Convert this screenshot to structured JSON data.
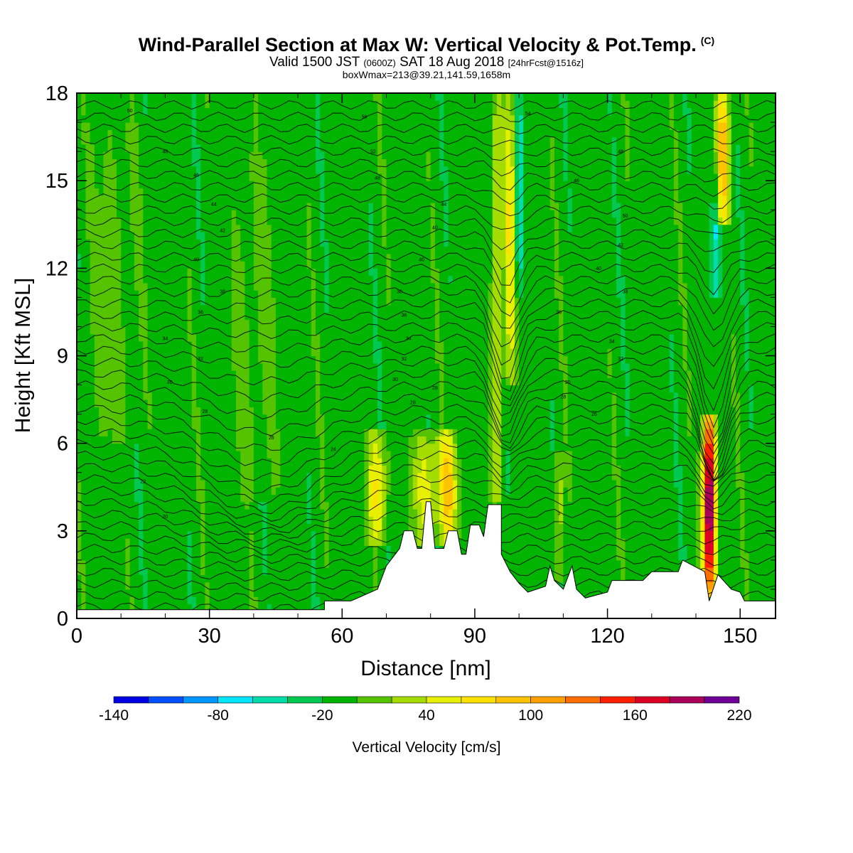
{
  "header": {
    "title": "Wind-Parallel Section at Max W: Vertical Velocity & Pot.Temp.",
    "copyright": "(C)",
    "valid_prefix": "Valid 1500 JST",
    "valid_utc": "(0600Z)",
    "valid_date": "SAT 18 Aug 2018",
    "forecast_note": "[24hrFcst@1516z]",
    "boxwmax": "boxWmax=213@39.21,141.59,1658m"
  },
  "chart_data": {
    "type": "heatmap",
    "xlabel": "Distance [nm]",
    "ylabel": "Height [Kft MSL]",
    "xlim": [
      0,
      158
    ],
    "ylim": [
      0,
      18
    ],
    "x_ticks": [
      0,
      30,
      60,
      90,
      120,
      150
    ],
    "y_ticks": [
      0,
      3,
      6,
      9,
      12,
      15,
      18
    ],
    "background_value": -10,
    "features": [
      {
        "kind": "updraft",
        "x": 68,
        "y_bottom": 2.5,
        "y_top": 6.5,
        "w": 2.2,
        "peak": 60
      },
      {
        "kind": "updraft",
        "x": 79,
        "y_bottom": 2.6,
        "y_top": 6.5,
        "w": 3.0,
        "peak": 50
      },
      {
        "kind": "updraft",
        "x": 84,
        "y_bottom": 2.6,
        "y_top": 6.4,
        "w": 2.0,
        "peak": 80
      },
      {
        "kind": "updraft",
        "x": 95,
        "y_bottom": 4.0,
        "y_top": 18,
        "w": 1.2,
        "peak": 50
      },
      {
        "kind": "updraft",
        "x": 98,
        "y_bottom": 8.0,
        "y_top": 18,
        "w": 1.3,
        "peak": 60
      },
      {
        "kind": "downdraft",
        "x": 100,
        "y_bottom": 11,
        "y_top": 18,
        "w": 1.0,
        "peak": -60
      },
      {
        "kind": "updraft",
        "x": 109,
        "y_bottom": 1.2,
        "y_top": 5.8,
        "w": 1.0,
        "peak": 40
      },
      {
        "kind": "updraft",
        "x": 143,
        "y_bottom": 0.7,
        "y_top": 7.0,
        "w": 1.4,
        "peak": 213
      },
      {
        "kind": "updraft",
        "x": 146,
        "y_bottom": 13.5,
        "y_top": 18,
        "w": 1.6,
        "peak": 100
      },
      {
        "kind": "downdraft",
        "x": 144.5,
        "y_bottom": 11,
        "y_top": 16,
        "w": 1.0,
        "peak": -60
      },
      {
        "kind": "updraft",
        "x": 8,
        "y_bottom": 6,
        "y_top": 17,
        "w": 5,
        "peak": 8
      },
      {
        "kind": "updraft",
        "x": 40,
        "y_bottom": 4,
        "y_top": 16,
        "w": 6,
        "peak": 6
      }
    ],
    "terrain_kft": [
      [
        0,
        0.3
      ],
      [
        56,
        0.3
      ],
      [
        56,
        0.6
      ],
      [
        62,
        0.6
      ],
      [
        68,
        1.0
      ],
      [
        70,
        1.8
      ],
      [
        73,
        2.4
      ],
      [
        74,
        3.0
      ],
      [
        76,
        3.0
      ],
      [
        77,
        2.4
      ],
      [
        78,
        2.4
      ],
      [
        79,
        4.0
      ],
      [
        80,
        4.0
      ],
      [
        81,
        2.4
      ],
      [
        83,
        2.4
      ],
      [
        84,
        3.0
      ],
      [
        86,
        3.0
      ],
      [
        87,
        2.2
      ],
      [
        88,
        2.2
      ],
      [
        89,
        3.2
      ],
      [
        91,
        3.2
      ],
      [
        92,
        2.8
      ],
      [
        93,
        3.9
      ],
      [
        96,
        3.9
      ],
      [
        96,
        2.2
      ],
      [
        98,
        1.6
      ],
      [
        100,
        1.2
      ],
      [
        102,
        0.9
      ],
      [
        106,
        1.1
      ],
      [
        107,
        1.8
      ],
      [
        108,
        1.3
      ],
      [
        110,
        1.0
      ],
      [
        112,
        1.8
      ],
      [
        113,
        1.0
      ],
      [
        115,
        0.7
      ],
      [
        120,
        0.9
      ],
      [
        121,
        1.3
      ],
      [
        128,
        1.3
      ],
      [
        130,
        1.6
      ],
      [
        136,
        1.6
      ],
      [
        137,
        2.0
      ],
      [
        142,
        1.6
      ],
      [
        143,
        0.6
      ],
      [
        145,
        1.5
      ],
      [
        148,
        1.0
      ],
      [
        150,
        0.9
      ],
      [
        151,
        0.6
      ],
      [
        158,
        0.6
      ]
    ],
    "isentrope_labels": [
      {
        "x": 12,
        "y": 17.4,
        "text": "50"
      },
      {
        "x": 20,
        "y": 16.0,
        "text": "48"
      },
      {
        "x": 27,
        "y": 15.2,
        "text": "46"
      },
      {
        "x": 31,
        "y": 14.2,
        "text": "44"
      },
      {
        "x": 33,
        "y": 13.3,
        "text": "42"
      },
      {
        "x": 27,
        "y": 12.3,
        "text": "40"
      },
      {
        "x": 33,
        "y": 11.2,
        "text": "38"
      },
      {
        "x": 28,
        "y": 10.5,
        "text": "36"
      },
      {
        "x": 20,
        "y": 9.6,
        "text": "34"
      },
      {
        "x": 28,
        "y": 8.9,
        "text": "32"
      },
      {
        "x": 21,
        "y": 8.1,
        "text": "30"
      },
      {
        "x": 29,
        "y": 7.1,
        "text": "28"
      },
      {
        "x": 44,
        "y": 6.2,
        "text": "26"
      },
      {
        "x": 58,
        "y": 5.8,
        "text": "24"
      },
      {
        "x": 15,
        "y": 4.7,
        "text": "22"
      },
      {
        "x": 20,
        "y": 3.5,
        "text": "20"
      },
      {
        "x": 65,
        "y": 17.2,
        "text": "56"
      },
      {
        "x": 67,
        "y": 16.0,
        "text": "52"
      },
      {
        "x": 68,
        "y": 15.1,
        "text": "48"
      },
      {
        "x": 83,
        "y": 14.2,
        "text": "44"
      },
      {
        "x": 81,
        "y": 13.4,
        "text": "40"
      },
      {
        "x": 78,
        "y": 12.3,
        "text": "40"
      },
      {
        "x": 73,
        "y": 11.2,
        "text": "38"
      },
      {
        "x": 74,
        "y": 10.4,
        "text": "36"
      },
      {
        "x": 75,
        "y": 9.6,
        "text": "34"
      },
      {
        "x": 74,
        "y": 8.9,
        "text": "32"
      },
      {
        "x": 72,
        "y": 8.2,
        "text": "30"
      },
      {
        "x": 81,
        "y": 7.9,
        "text": "28"
      },
      {
        "x": 76,
        "y": 7.4,
        "text": "28"
      },
      {
        "x": 102,
        "y": 17.3,
        "text": "54"
      },
      {
        "x": 123,
        "y": 16.0,
        "text": "48"
      },
      {
        "x": 113,
        "y": 15.0,
        "text": "46"
      },
      {
        "x": 124,
        "y": 13.8,
        "text": "50"
      },
      {
        "x": 123,
        "y": 12.8,
        "text": "42"
      },
      {
        "x": 118,
        "y": 12.0,
        "text": "40"
      },
      {
        "x": 124,
        "y": 11.2,
        "text": "38"
      },
      {
        "x": 109,
        "y": 10.5,
        "text": "36"
      },
      {
        "x": 121,
        "y": 9.5,
        "text": "34"
      },
      {
        "x": 123,
        "y": 8.9,
        "text": "32"
      },
      {
        "x": 111,
        "y": 8.1,
        "text": "30"
      },
      {
        "x": 110,
        "y": 7.6,
        "text": "28"
      },
      {
        "x": 117,
        "y": 7.0,
        "text": "26"
      },
      {
        "x": 109,
        "y": 3.6,
        "text": "3"
      }
    ]
  },
  "legend": {
    "title": "Vertical Velocity [cm/s]",
    "min": -140,
    "step": 20,
    "colors": [
      "#0000e6",
      "#0050ff",
      "#0096ff",
      "#00e6ff",
      "#00dcaa",
      "#00c850",
      "#00b400",
      "#55c300",
      "#a5dc00",
      "#e6f000",
      "#ffe100",
      "#ffc300",
      "#ffa000",
      "#ff6e00",
      "#ff1e00",
      "#dc0023",
      "#aa005a",
      "#6e0096"
    ],
    "tick_labels": [
      "-140",
      "-80",
      "-20",
      "40",
      "100",
      "160",
      "220"
    ]
  }
}
